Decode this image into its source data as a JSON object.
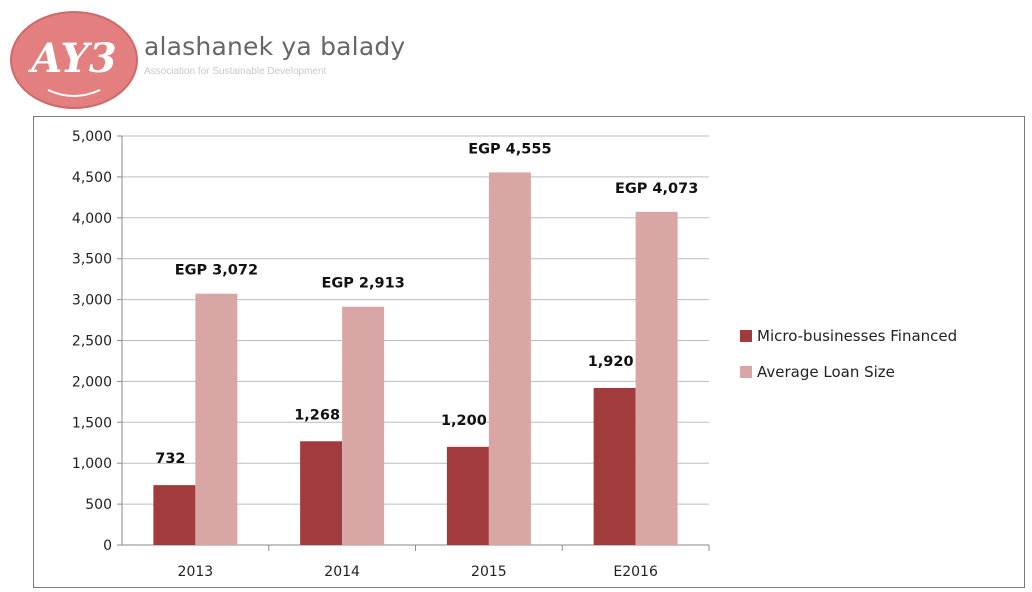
{
  "brand": {
    "logo_text": "AY3",
    "name": "alashanek ya balady",
    "tagline": "Association for Sustainable Development",
    "logo_color": "#e37f7f"
  },
  "chart_data": {
    "type": "bar",
    "title": "",
    "xlabel": "",
    "ylabel": "",
    "categories": [
      "2013",
      "2014",
      "2015",
      "E2016"
    ],
    "ylim": [
      0,
      5000
    ],
    "yticks": [
      0,
      500,
      1000,
      1500,
      2000,
      2500,
      3000,
      3500,
      4000,
      4500,
      5000
    ],
    "ytick_labels": [
      "0",
      "500",
      "1,000",
      "1,500",
      "2,000",
      "2,500",
      "3,000",
      "3,500",
      "4,000",
      "4,500",
      "5,000"
    ],
    "grid": true,
    "legend_position": "right",
    "series": [
      {
        "name": "Micro-businesses Financed",
        "color": "#a23b3b",
        "values": [
          732,
          1268,
          1200,
          1920
        ],
        "labels": [
          "732",
          "1,268",
          "1,200",
          "1,920"
        ]
      },
      {
        "name": "Average Loan Size",
        "color": "#d9a6a6",
        "values": [
          3072,
          2913,
          4555,
          4073
        ],
        "labels": [
          "EGP 3,072",
          "EGP 2,913",
          "EGP 4,555",
          "EGP 4,073"
        ]
      }
    ]
  }
}
